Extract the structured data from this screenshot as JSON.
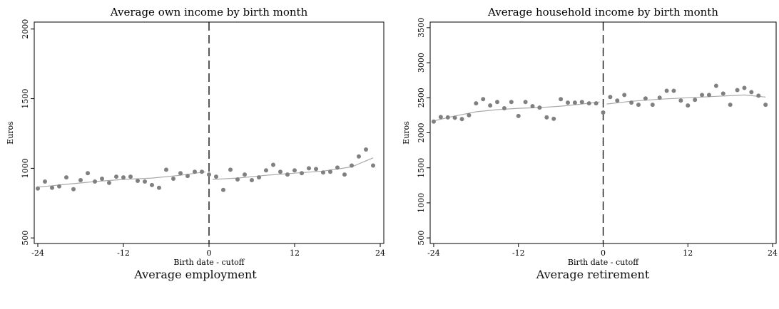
{
  "chart_data": [
    {
      "type": "scatter",
      "title": "Average own income by birth month",
      "xlabel": "Birth date - cutoff",
      "ylabel": "Euros",
      "xlim": [
        -24.5,
        24.5
      ],
      "ylim": [
        460,
        2050
      ],
      "xticks": [
        -24,
        -12,
        0,
        12,
        24
      ],
      "yticks": [
        500,
        1000,
        1500,
        2000
      ],
      "cutoff": 0,
      "grid": false,
      "colors": {
        "points": "#808080",
        "fit": "#aaaaaa",
        "cutoff": "#000000"
      },
      "series": [
        {
          "x": [
            -24,
            -23,
            -22,
            -21,
            -20,
            -19,
            -18,
            -17,
            -16,
            -15,
            -14,
            -13,
            -12,
            -11,
            -10,
            -9,
            -8,
            -7,
            -6,
            -5,
            -4,
            -3,
            -2,
            -1,
            0,
            1,
            2,
            3,
            4,
            5,
            6,
            7,
            8,
            9,
            10,
            11,
            12,
            13,
            14,
            15,
            16,
            17,
            18,
            19,
            20,
            21,
            22,
            23
          ],
          "y": [
            855,
            905,
            860,
            870,
            935,
            850,
            915,
            965,
            905,
            925,
            895,
            940,
            935,
            940,
            910,
            905,
            880,
            860,
            990,
            925,
            965,
            945,
            975,
            975,
            955,
            940,
            845,
            990,
            920,
            955,
            915,
            935,
            985,
            1025,
            975,
            955,
            985,
            965,
            1000,
            995,
            970,
            975,
            1005,
            955,
            1020,
            1085,
            1135,
            1020
          ]
        }
      ],
      "fit_left": {
        "x": [
          -24,
          -20,
          -16,
          -12,
          -8,
          -4,
          -0.5
        ],
        "y": [
          865,
          885,
          905,
          920,
          930,
          950,
          975
        ]
      },
      "fit_right": {
        "x": [
          0.5,
          4,
          8,
          12,
          16,
          20,
          23
        ],
        "y": [
          920,
          930,
          950,
          965,
          980,
          1010,
          1075
        ]
      }
    },
    {
      "type": "scatter",
      "title": "Average household income by birth month",
      "xlabel": "Birth date - cutoff",
      "ylabel": "Euros",
      "xlim": [
        -24.5,
        24.5
      ],
      "ylim": [
        420,
        3580
      ],
      "xticks": [
        -24,
        -12,
        0,
        12,
        24
      ],
      "yticks": [
        500,
        1000,
        1500,
        2000,
        2500,
        3000,
        3500
      ],
      "cutoff": 0,
      "grid": false,
      "colors": {
        "points": "#808080",
        "fit": "#aaaaaa",
        "cutoff": "#000000"
      },
      "series": [
        {
          "x": [
            -24,
            -23,
            -22,
            -21,
            -20,
            -19,
            -18,
            -17,
            -16,
            -15,
            -14,
            -13,
            -12,
            -11,
            -10,
            -9,
            -8,
            -7,
            -6,
            -5,
            -4,
            -3,
            -2,
            -1,
            0,
            1,
            2,
            3,
            4,
            5,
            6,
            7,
            8,
            9,
            10,
            11,
            12,
            13,
            14,
            15,
            16,
            17,
            18,
            19,
            20,
            21,
            22,
            23
          ],
          "y": [
            2160,
            2225,
            2220,
            2215,
            2195,
            2250,
            2420,
            2480,
            2390,
            2440,
            2350,
            2440,
            2240,
            2440,
            2380,
            2360,
            2220,
            2200,
            2480,
            2430,
            2430,
            2440,
            2420,
            2420,
            2290,
            2510,
            2460,
            2540,
            2430,
            2400,
            2490,
            2400,
            2500,
            2600,
            2600,
            2460,
            2390,
            2470,
            2540,
            2540,
            2670,
            2560,
            2400,
            2610,
            2640,
            2580,
            2530,
            2400
          ]
        }
      ],
      "fit_left": {
        "x": [
          -24,
          -21,
          -18,
          -15,
          -12,
          -9,
          -6,
          -3,
          -0.5
        ],
        "y": [
          2170,
          2240,
          2300,
          2330,
          2350,
          2360,
          2380,
          2410,
          2440
        ]
      },
      "fit_right": {
        "x": [
          0.5,
          4,
          8,
          12,
          16,
          20,
          23
        ],
        "y": [
          2410,
          2450,
          2480,
          2500,
          2520,
          2540,
          2510
        ]
      }
    }
  ],
  "captions": {
    "left": "Average employment",
    "right": "Average retirement"
  }
}
